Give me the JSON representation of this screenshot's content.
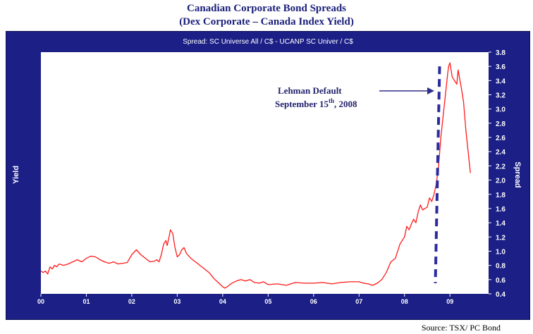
{
  "header": {
    "title": "Canadian Corporate Bond Spreads",
    "subtitle": "(Dex Corporate – Canada Index Yield)"
  },
  "footer": {
    "source": "Source: TSX/ PC Bond"
  },
  "colors": {
    "panel": "#1b1f86",
    "plot_background": "#ffffff",
    "series_line": "#ff1a1a",
    "annotation": "#2e2e8c",
    "dashed_line": "#2b2b9e"
  },
  "chart_data": {
    "type": "line",
    "title": "Spread: SC Universe All / C$  -  UCANP SC Univer / C$",
    "ylabel_left": "Yield",
    "ylabel_right": "Spread",
    "x_tick_labels": [
      "00",
      "01",
      "02",
      "03",
      "04",
      "05",
      "06",
      "07",
      "08",
      "09"
    ],
    "y_ticks": [
      "0.4",
      "0.6",
      "0.8",
      "1.0",
      "1.2",
      "1.4",
      "1.6",
      "1.8",
      "2.0",
      "2.2",
      "2.4",
      "2.6",
      "2.8",
      "3.0",
      "3.2",
      "3.4",
      "3.6",
      "3.8"
    ],
    "ylim": [
      0.4,
      3.8
    ],
    "xlim": [
      2000.0,
      2009.85
    ],
    "grid": false,
    "annotation": {
      "line1": "Lehman Default",
      "line2_prefix": "September 15",
      "line2_sup": "th",
      "line2_suffix": ", 2008",
      "event_x": 2008.71
    },
    "series": [
      {
        "x": [
          2000.0,
          2000.05,
          2000.1,
          2000.15,
          2000.2,
          2000.25,
          2000.3,
          2000.35,
          2000.4,
          2000.5,
          2000.6,
          2000.7,
          2000.8,
          2000.9,
          2001.0,
          2001.1,
          2001.2,
          2001.3,
          2001.4,
          2001.5,
          2001.6,
          2001.7,
          2001.8,
          2001.9,
          2002.0,
          2002.1,
          2002.2,
          2002.3,
          2002.4,
          2002.5,
          2002.55,
          2002.6,
          2002.65,
          2002.7,
          2002.75,
          2002.78,
          2002.82,
          2002.85,
          2002.9,
          2002.95,
          2003.0,
          2003.05,
          2003.1,
          2003.15,
          2003.2,
          2003.3,
          2003.4,
          2003.5,
          2003.6,
          2003.7,
          2003.8,
          2003.9,
          2004.0,
          2004.05,
          2004.1,
          2004.2,
          2004.3,
          2004.4,
          2004.5,
          2004.6,
          2004.7,
          2004.8,
          2004.9,
          2005.0,
          2005.2,
          2005.4,
          2005.6,
          2005.8,
          2006.0,
          2006.2,
          2006.4,
          2006.6,
          2006.8,
          2007.0,
          2007.1,
          2007.2,
          2007.3,
          2007.4,
          2007.5,
          2007.6,
          2007.7,
          2007.8,
          2007.9,
          2008.0,
          2008.05,
          2008.1,
          2008.15,
          2008.2,
          2008.25,
          2008.3,
          2008.35,
          2008.4,
          2008.45,
          2008.5,
          2008.55,
          2008.6,
          2008.65,
          2008.7,
          2008.75,
          2008.8,
          2008.85,
          2008.9,
          2008.95,
          2008.97,
          2009.0,
          2009.05,
          2009.1,
          2009.15,
          2009.18,
          2009.22,
          2009.25,
          2009.3,
          2009.35,
          2009.4,
          2009.45
        ],
        "y": [
          0.72,
          0.7,
          0.72,
          0.68,
          0.78,
          0.75,
          0.8,
          0.78,
          0.82,
          0.8,
          0.82,
          0.85,
          0.88,
          0.85,
          0.9,
          0.93,
          0.92,
          0.88,
          0.85,
          0.83,
          0.85,
          0.82,
          0.83,
          0.84,
          0.95,
          1.02,
          0.95,
          0.9,
          0.85,
          0.86,
          0.88,
          0.85,
          0.95,
          1.1,
          1.15,
          1.08,
          1.2,
          1.3,
          1.25,
          1.05,
          0.92,
          0.95,
          1.02,
          1.05,
          0.97,
          0.9,
          0.85,
          0.8,
          0.75,
          0.7,
          0.62,
          0.56,
          0.5,
          0.48,
          0.5,
          0.55,
          0.58,
          0.6,
          0.58,
          0.6,
          0.56,
          0.55,
          0.57,
          0.53,
          0.54,
          0.52,
          0.56,
          0.55,
          0.55,
          0.56,
          0.54,
          0.56,
          0.57,
          0.57,
          0.55,
          0.54,
          0.52,
          0.55,
          0.6,
          0.7,
          0.85,
          0.9,
          1.1,
          1.2,
          1.35,
          1.3,
          1.38,
          1.45,
          1.4,
          1.55,
          1.65,
          1.58,
          1.6,
          1.62,
          1.75,
          1.7,
          1.8,
          1.95,
          2.2,
          2.6,
          2.9,
          3.2,
          3.5,
          3.6,
          3.65,
          3.45,
          3.4,
          3.35,
          3.55,
          3.4,
          3.3,
          3.1,
          2.7,
          2.4,
          2.1
        ]
      }
    ]
  }
}
